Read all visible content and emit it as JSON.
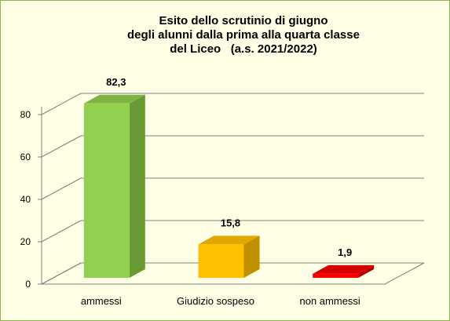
{
  "chart_data": {
    "type": "bar",
    "title_lines": [
      "Esito dello scrutinio di giugno",
      "degli alunni dalla prima alla quarta classe",
      "del Liceo   (a.s. 2021/2022)"
    ],
    "categories": [
      "ammessi",
      "Giudizio sospeso",
      "non ammessi"
    ],
    "values": [
      82.3,
      15.8,
      1.9
    ],
    "value_labels": [
      "82,3",
      "15,8",
      "1,9"
    ],
    "colors": [
      {
        "front": "#92d050",
        "side": "#6a9a35",
        "top": "#7fb342"
      },
      {
        "front": "#ffc000",
        "side": "#bf8f00",
        "top": "#e0a800"
      },
      {
        "front": "#ff0000",
        "side": "#b00000",
        "top": "#d40000"
      }
    ],
    "ylim": [
      0,
      80
    ],
    "yticks": [
      0,
      20,
      40,
      60,
      80
    ],
    "grid": true,
    "three_d": true,
    "xlabel": "",
    "ylabel": ""
  }
}
